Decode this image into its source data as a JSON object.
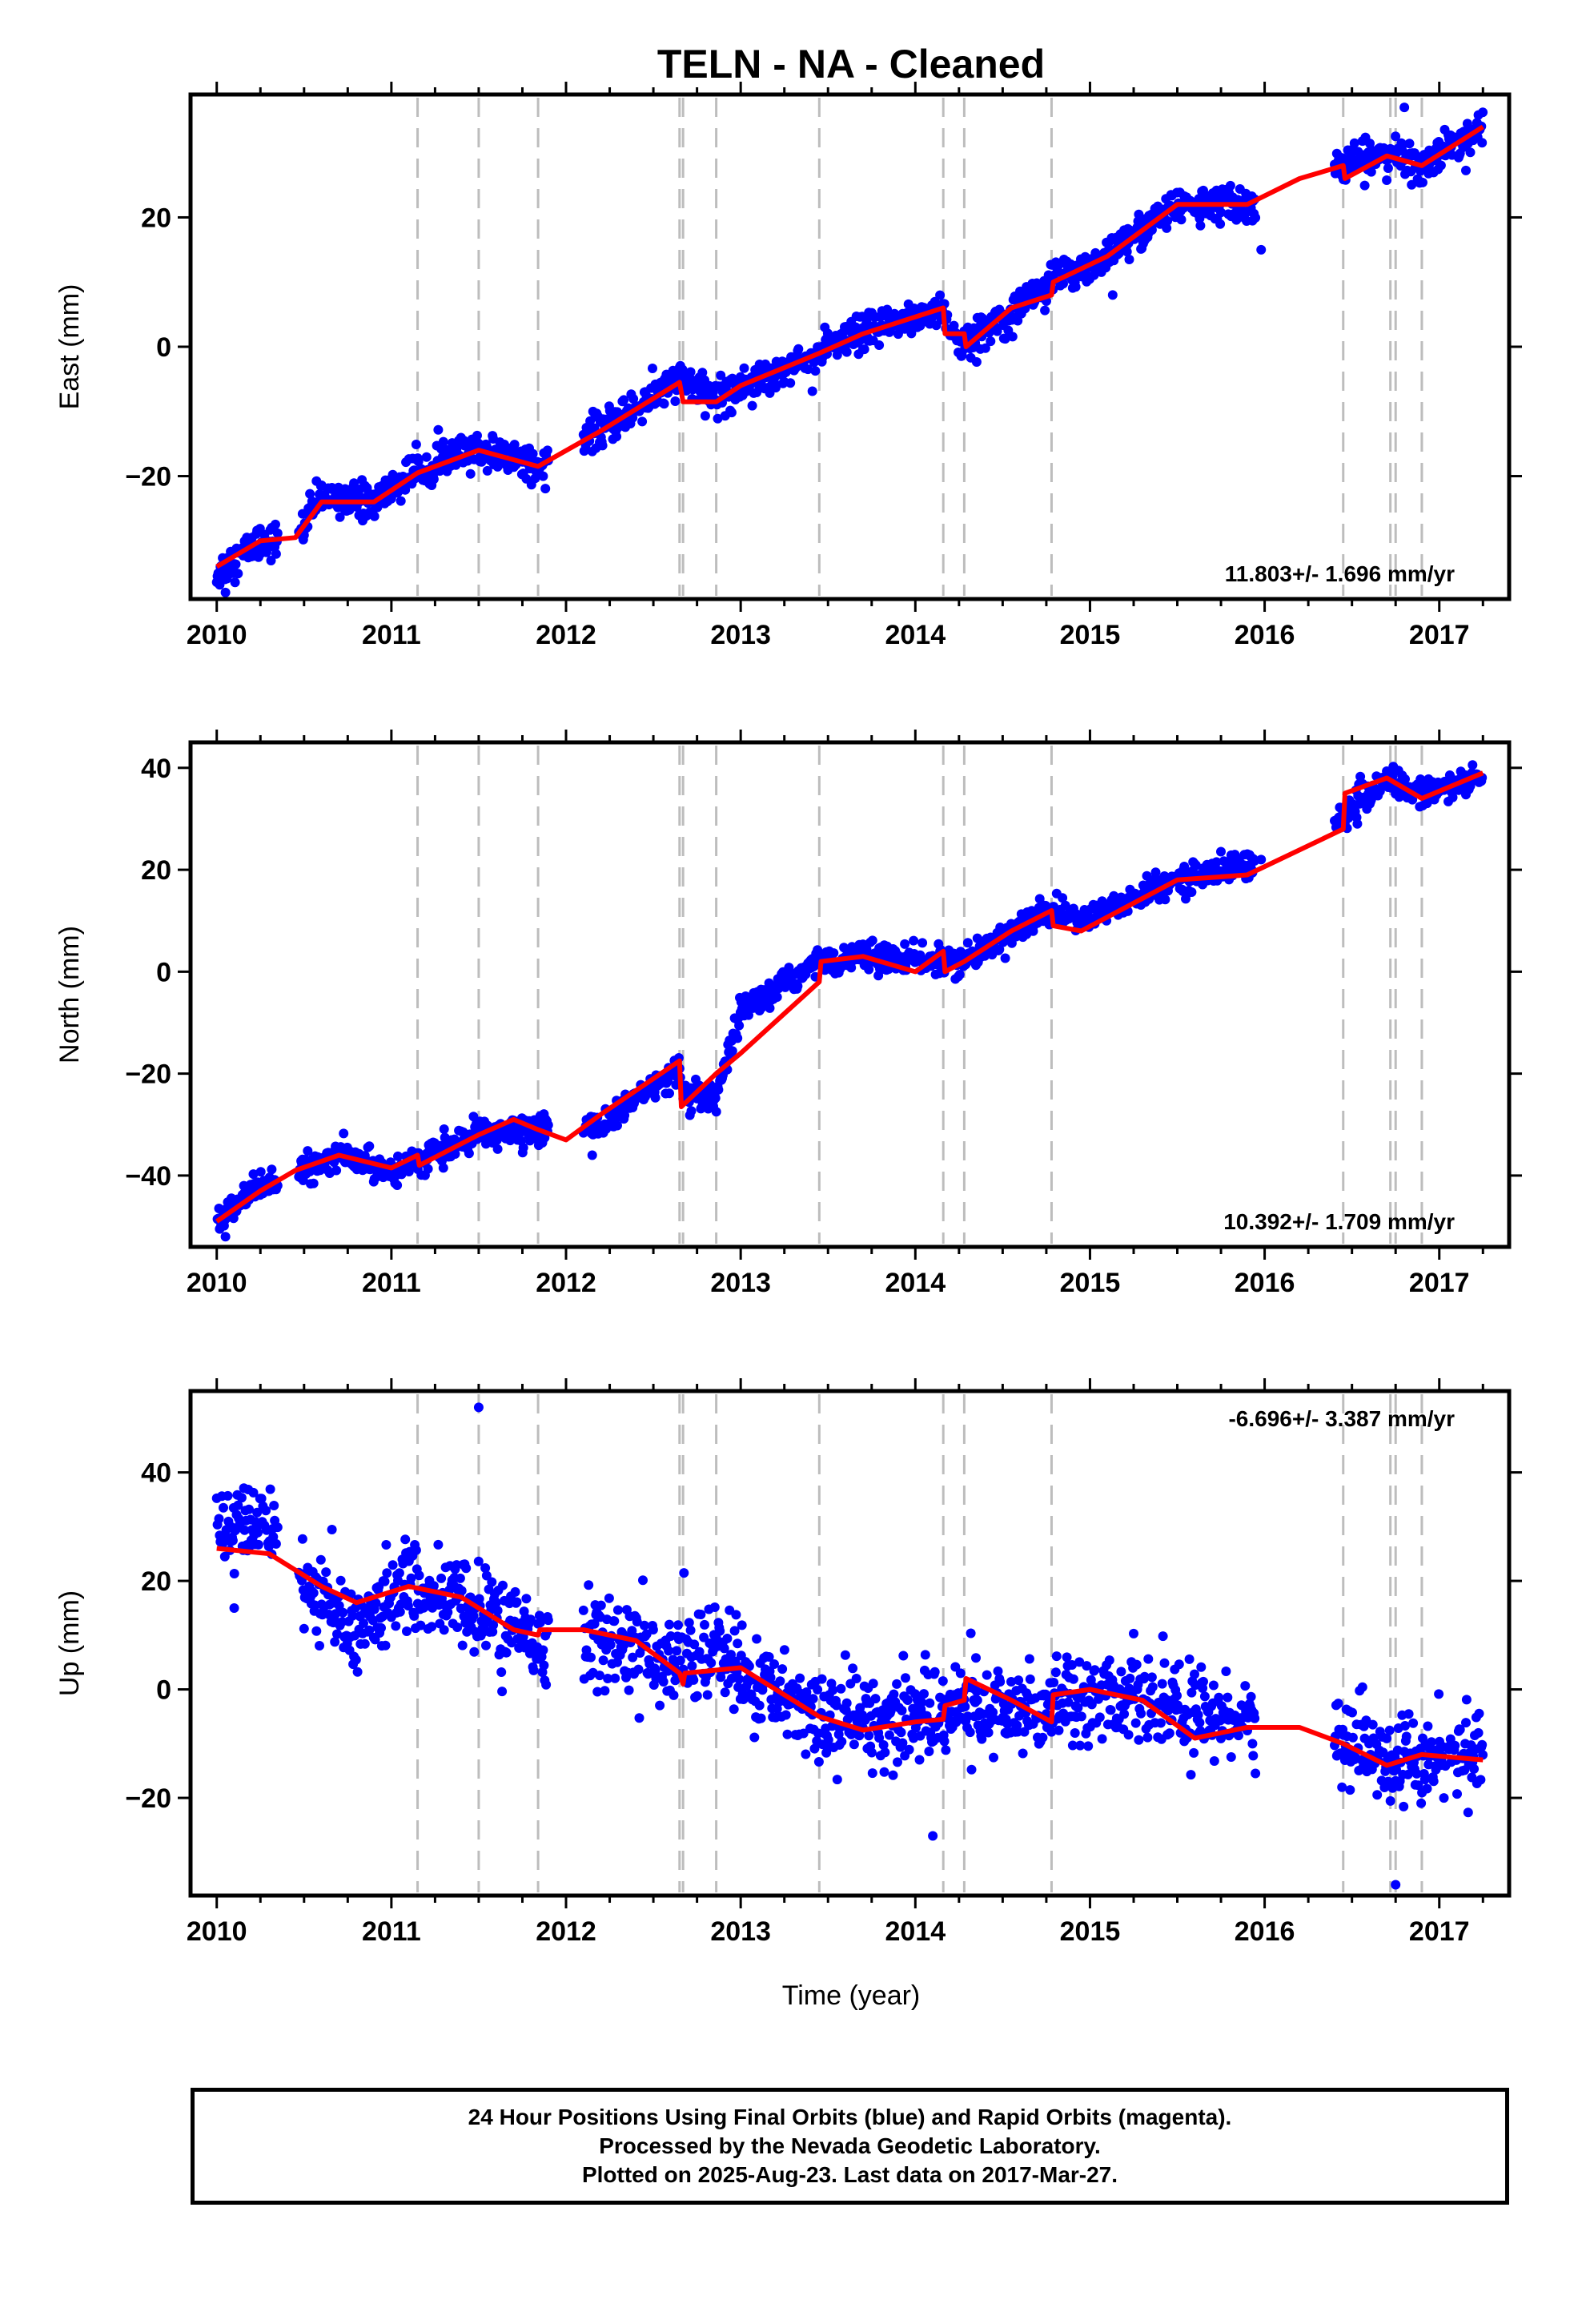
{
  "title": "TELN  - NA - Cleaned",
  "xlabel": "Time (year)",
  "footer": {
    "line1": "24 Hour Positions Using Final Orbits (blue) and Rapid Orbits (magenta).",
    "line2": "Processed by the Nevada Geodetic Laboratory.",
    "line3": "Plotted on 2025-Aug-23. Last data on 2017-Mar-27."
  },
  "colors": {
    "points": "#0000ff",
    "model": "#ff0000",
    "event_lines": "#bdbdbd",
    "frame": "#000000"
  },
  "chart_data": [
    {
      "type": "scatter",
      "ylabel": "East (mm)",
      "rate_text": "11.803+/- 1.696 mm/yr",
      "rate_position": "bottom-right",
      "xlim": [
        2009.85,
        2017.4
      ],
      "ylim": [
        -39,
        39
      ],
      "xticks": [
        2010,
        2011,
        2012,
        2013,
        2014,
        2015,
        2016,
        2017
      ],
      "yticks": [
        -20,
        0,
        20
      ],
      "event_lines": [
        2011.15,
        2011.5,
        2011.84,
        2012.65,
        2012.67,
        2012.86,
        2013.45,
        2014.16,
        2014.28,
        2014.78,
        2016.45,
        2016.72,
        2016.75,
        2016.9
      ],
      "data_gaps": [
        [
          2010.35,
          2010.47
        ],
        [
          2011.9,
          2012.1
        ],
        [
          2015.95,
          2016.4
        ]
      ],
      "series": [
        {
          "kind": "points",
          "noise": 1.8,
          "outliers": [
            [
              2010.05,
              -38
            ],
            [
              2016.8,
              37
            ],
            [
              2015.13,
              8
            ],
            [
              2015.98,
              15
            ]
          ],
          "points": [
            [
              2010.0,
              -35
            ],
            [
              2010.25,
              -30
            ],
            [
              2010.45,
              -30
            ],
            [
              2010.6,
              -23
            ],
            [
              2010.9,
              -24
            ],
            [
              2011.15,
              -19
            ],
            [
              2011.5,
              -16
            ],
            [
              2011.84,
              -18
            ],
            [
              2012.2,
              -13
            ],
            [
              2012.65,
              -5
            ],
            [
              2012.86,
              -8
            ],
            [
              2013.0,
              -6
            ],
            [
              2013.45,
              -1
            ],
            [
              2013.7,
              2
            ],
            [
              2014.16,
              6
            ],
            [
              2014.2,
              2
            ],
            [
              2014.28,
              0
            ],
            [
              2014.55,
              6
            ],
            [
              2014.78,
              10
            ],
            [
              2015.1,
              14
            ],
            [
              2015.5,
              22
            ],
            [
              2015.9,
              22
            ],
            [
              2016.45,
              28
            ],
            [
              2016.7,
              30
            ],
            [
              2016.9,
              28
            ],
            [
              2017.25,
              34
            ]
          ]
        },
        {
          "kind": "model",
          "points": [
            [
              2010.0,
              -34
            ],
            [
              2010.25,
              -30
            ],
            [
              2010.45,
              -29.5
            ],
            [
              2010.6,
              -24
            ],
            [
              2010.9,
              -24
            ],
            [
              2011.15,
              -19.5
            ],
            [
              2011.5,
              -16
            ],
            [
              2011.84,
              -18.5
            ],
            [
              2012.2,
              -13
            ],
            [
              2012.65,
              -5.5
            ],
            [
              2012.67,
              -8.5
            ],
            [
              2012.86,
              -8.5
            ],
            [
              2013.0,
              -6
            ],
            [
              2013.45,
              -1
            ],
            [
              2013.7,
              2
            ],
            [
              2014.16,
              6
            ],
            [
              2014.17,
              2
            ],
            [
              2014.28,
              2
            ],
            [
              2014.29,
              0
            ],
            [
              2014.55,
              6
            ],
            [
              2014.78,
              8
            ],
            [
              2014.79,
              10
            ],
            [
              2015.1,
              14
            ],
            [
              2015.5,
              22
            ],
            [
              2015.9,
              22
            ],
            [
              2016.2,
              26
            ],
            [
              2016.45,
              28
            ],
            [
              2016.46,
              26
            ],
            [
              2016.7,
              29.5
            ],
            [
              2016.9,
              28
            ],
            [
              2017.25,
              34
            ]
          ]
        }
      ]
    },
    {
      "type": "scatter",
      "ylabel": "North (mm)",
      "rate_text": "10.392+/- 1.709 mm/yr",
      "rate_position": "bottom-right",
      "xlim": [
        2009.85,
        2017.4
      ],
      "ylim": [
        -54,
        45
      ],
      "xticks": [
        2010,
        2011,
        2012,
        2013,
        2014,
        2015,
        2016,
        2017
      ],
      "yticks": [
        -40,
        -20,
        0,
        20,
        40
      ],
      "event_lines": [
        2011.15,
        2011.5,
        2011.84,
        2012.65,
        2012.67,
        2012.86,
        2013.45,
        2014.16,
        2014.28,
        2014.78,
        2016.45,
        2016.72,
        2016.75,
        2016.9
      ],
      "data_gaps": [
        [
          2010.35,
          2010.47
        ],
        [
          2011.9,
          2012.1
        ],
        [
          2015.95,
          2016.4
        ]
      ],
      "series": [
        {
          "kind": "points",
          "noise": 1.8,
          "outliers": [
            [
              2010.05,
              -52
            ],
            [
              2012.15,
              -36
            ],
            [
              2015.98,
              22
            ]
          ],
          "points": [
            [
              2010.0,
              -48
            ],
            [
              2010.25,
              -42
            ],
            [
              2010.45,
              -40
            ],
            [
              2010.7,
              -36
            ],
            [
              2011.0,
              -39
            ],
            [
              2011.15,
              -37
            ],
            [
              2011.5,
              -32
            ],
            [
              2011.84,
              -31
            ],
            [
              2012.2,
              -30
            ],
            [
              2012.65,
              -19
            ],
            [
              2012.67,
              -25
            ],
            [
              2012.86,
              -25
            ],
            [
              2013.0,
              -8
            ],
            [
              2013.45,
              2
            ],
            [
              2013.7,
              3
            ],
            [
              2014.16,
              2
            ],
            [
              2014.28,
              2
            ],
            [
              2014.55,
              8
            ],
            [
              2014.78,
              12
            ],
            [
              2014.95,
              10
            ],
            [
              2015.5,
              18
            ],
            [
              2015.9,
              21
            ],
            [
              2016.45,
              30
            ],
            [
              2016.7,
              38
            ],
            [
              2016.9,
              35
            ],
            [
              2017.25,
              38
            ]
          ]
        },
        {
          "kind": "model",
          "points": [
            [
              2010.0,
              -49
            ],
            [
              2010.25,
              -43
            ],
            [
              2010.45,
              -39
            ],
            [
              2010.7,
              -36
            ],
            [
              2011.0,
              -38.5
            ],
            [
              2011.15,
              -36
            ],
            [
              2011.16,
              -38
            ],
            [
              2011.5,
              -32
            ],
            [
              2011.7,
              -29
            ],
            [
              2011.84,
              -31
            ],
            [
              2012.0,
              -33
            ],
            [
              2012.2,
              -28
            ],
            [
              2012.65,
              -17.5
            ],
            [
              2012.66,
              -26.5
            ],
            [
              2012.86,
              -20
            ],
            [
              2013.0,
              -16
            ],
            [
              2013.45,
              -2
            ],
            [
              2013.46,
              2
            ],
            [
              2013.7,
              3
            ],
            [
              2014.0,
              0
            ],
            [
              2014.16,
              4
            ],
            [
              2014.17,
              0
            ],
            [
              2014.28,
              2
            ],
            [
              2014.55,
              8
            ],
            [
              2014.78,
              12
            ],
            [
              2014.79,
              9
            ],
            [
              2014.95,
              8
            ],
            [
              2015.5,
              18
            ],
            [
              2015.9,
              19
            ],
            [
              2016.45,
              28
            ],
            [
              2016.46,
              35
            ],
            [
              2016.7,
              38
            ],
            [
              2016.9,
              34
            ],
            [
              2017.25,
              39
            ]
          ]
        }
      ]
    },
    {
      "type": "scatter",
      "ylabel": "Up (mm)",
      "rate_text": "-6.696+/- 3.387 mm/yr",
      "rate_position": "top-right",
      "xlim": [
        2009.85,
        2017.4
      ],
      "ylim": [
        -38,
        55
      ],
      "xticks": [
        2010,
        2011,
        2012,
        2013,
        2014,
        2015,
        2016,
        2017
      ],
      "yticks": [
        -20,
        0,
        20,
        40
      ],
      "event_lines": [
        2011.15,
        2011.5,
        2011.84,
        2012.65,
        2012.67,
        2012.86,
        2013.45,
        2014.16,
        2014.28,
        2014.78,
        2016.45,
        2016.72,
        2016.75,
        2016.9
      ],
      "data_gaps": [
        [
          2010.35,
          2010.47
        ],
        [
          2011.9,
          2012.1
        ],
        [
          2015.95,
          2016.4
        ]
      ],
      "series": [
        {
          "kind": "points",
          "noise": 5.5,
          "outliers": [
            [
              2011.5,
              52
            ],
            [
              2014.1,
              -27
            ],
            [
              2016.75,
              -36
            ],
            [
              2010.1,
              15
            ]
          ],
          "points": [
            [
              2010.0,
              28
            ],
            [
              2010.3,
              32
            ],
            [
              2010.5,
              20
            ],
            [
              2010.8,
              10
            ],
            [
              2011.0,
              18
            ],
            [
              2011.3,
              17
            ],
            [
              2011.6,
              13
            ],
            [
              2011.84,
              8
            ],
            [
              2012.2,
              10
            ],
            [
              2012.6,
              5
            ],
            [
              2012.86,
              8
            ],
            [
              2013.0,
              2
            ],
            [
              2013.45,
              -4
            ],
            [
              2013.7,
              -6
            ],
            [
              2014.16,
              -4
            ],
            [
              2014.28,
              -3
            ],
            [
              2014.55,
              -5
            ],
            [
              2014.78,
              -2
            ],
            [
              2015.0,
              0
            ],
            [
              2015.5,
              -4
            ],
            [
              2015.9,
              -5
            ],
            [
              2016.45,
              -10
            ],
            [
              2016.75,
              -13
            ],
            [
              2017.25,
              -12
            ]
          ]
        },
        {
          "kind": "model",
          "points": [
            [
              2010.0,
              26
            ],
            [
              2010.3,
              25
            ],
            [
              2010.6,
              19
            ],
            [
              2010.8,
              16
            ],
            [
              2011.1,
              19
            ],
            [
              2011.4,
              17
            ],
            [
              2011.7,
              11
            ],
            [
              2011.84,
              10
            ],
            [
              2011.85,
              11
            ],
            [
              2012.1,
              11
            ],
            [
              2012.4,
              9
            ],
            [
              2012.65,
              3
            ],
            [
              2012.67,
              1
            ],
            [
              2012.68,
              3
            ],
            [
              2013.0,
              4
            ],
            [
              2013.45,
              -5
            ],
            [
              2013.7,
              -7.5
            ],
            [
              2014.0,
              -6
            ],
            [
              2014.16,
              -5.5
            ],
            [
              2014.17,
              -3
            ],
            [
              2014.28,
              -2
            ],
            [
              2014.29,
              2
            ],
            [
              2014.55,
              -2
            ],
            [
              2014.78,
              -6
            ],
            [
              2014.79,
              -1
            ],
            [
              2015.0,
              0
            ],
            [
              2015.3,
              -2
            ],
            [
              2015.6,
              -9
            ],
            [
              2015.9,
              -7
            ],
            [
              2016.2,
              -7
            ],
            [
              2016.45,
              -10
            ],
            [
              2016.7,
              -14
            ],
            [
              2016.9,
              -12
            ],
            [
              2017.25,
              -13
            ]
          ]
        }
      ]
    }
  ]
}
